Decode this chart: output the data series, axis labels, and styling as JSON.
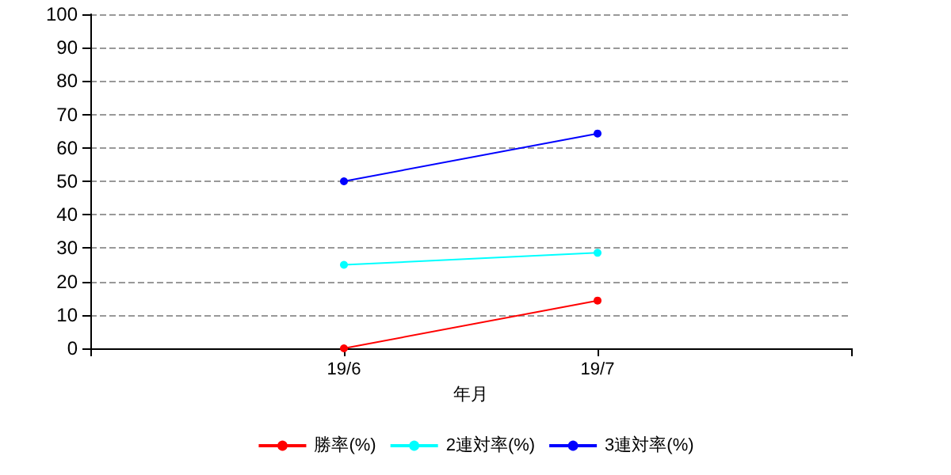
{
  "chart_data": {
    "type": "line",
    "xlabel": "年月",
    "categories": [
      null,
      "19/6",
      "19/7",
      null
    ],
    "series": [
      {
        "name": "勝率(%)",
        "color": "#ff0000",
        "values": [
          null,
          0,
          14.3,
          null
        ]
      },
      {
        "name": "2連対率(%)",
        "color": "#00ffff",
        "values": [
          null,
          25,
          28.6,
          null
        ]
      },
      {
        "name": "3連対率(%)",
        "color": "#0000ff",
        "values": [
          null,
          50,
          64.3,
          null
        ]
      }
    ],
    "ylim": [
      0,
      100
    ],
    "yticks": [
      0,
      10,
      20,
      30,
      40,
      50,
      60,
      70,
      80,
      90,
      100
    ],
    "grid": "y",
    "legend": "bottom",
    "marker": "circle",
    "line_style": "solid"
  }
}
